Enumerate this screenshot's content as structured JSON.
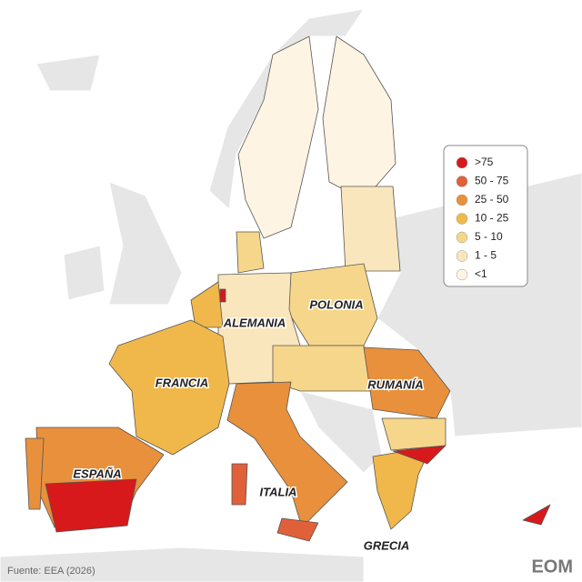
{
  "legend": {
    "items": [
      {
        "label": ">75",
        "color": "#d7191c"
      },
      {
        "label": "50 - 75",
        "color": "#e0603a"
      },
      {
        "label": "25 - 50",
        "color": "#e8903c"
      },
      {
        "label": "10 - 25",
        "color": "#f0b84a"
      },
      {
        "label": "5 - 10",
        "color": "#f6d68a"
      },
      {
        "label": "1 - 5",
        "color": "#f9e6bd"
      },
      {
        "label": "<1",
        "color": "#fdf4e3"
      }
    ]
  },
  "labels": {
    "spain": "ESPAÑA",
    "france": "FRANCIA",
    "germany": "ALEMANIA",
    "poland": "POLONIA",
    "romania": "RUMANÍA",
    "italy": "ITALIA",
    "greece": "GRECIA"
  },
  "source": "Fuente: EEA (2026)",
  "logo": "EOM"
}
